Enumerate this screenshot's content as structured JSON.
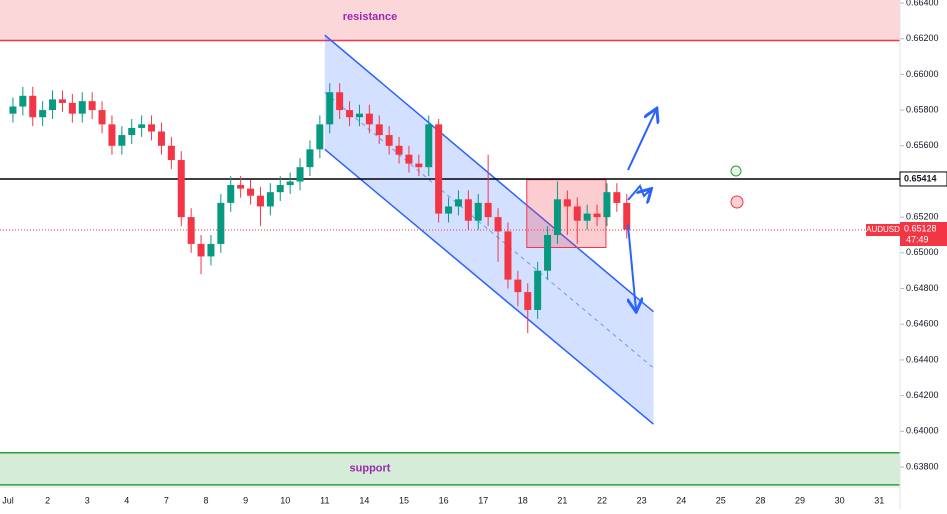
{
  "chart_data": {
    "type": "candlestick",
    "symbol": "AUDUSD",
    "last_price": {
      "value": 0.65128,
      "label": "0.65128"
    },
    "countdown": "47:49",
    "categories": [
      "Jul",
      "2",
      "3",
      "4",
      "7",
      "8",
      "9",
      "10",
      "11",
      "14",
      "15",
      "16",
      "17",
      "18",
      "21",
      "22",
      "23",
      "24",
      "25",
      "28",
      "29",
      "30",
      "31"
    ],
    "up_color": "#089981",
    "down_color": "#f23645",
    "candles": [
      [
        0.6578,
        0.6587,
        0.6573,
        0.6582
      ],
      [
        0.6582,
        0.6593,
        0.6577,
        0.6588
      ],
      [
        0.6588,
        0.6593,
        0.6571,
        0.6576
      ],
      [
        0.6576,
        0.6585,
        0.6571,
        0.658
      ],
      [
        0.658,
        0.6591,
        0.6575,
        0.6586
      ],
      [
        0.6586,
        0.6591,
        0.6579,
        0.6584
      ],
      [
        0.6584,
        0.6589,
        0.6573,
        0.6578
      ],
      [
        0.6578,
        0.659,
        0.6573,
        0.6585
      ],
      [
        0.6585,
        0.659,
        0.6575,
        0.658
      ],
      [
        0.658,
        0.6585,
        0.6567,
        0.6572
      ],
      [
        0.6572,
        0.6577,
        0.6555,
        0.656
      ],
      [
        0.656,
        0.6571,
        0.6555,
        0.6566
      ],
      [
        0.6566,
        0.6575,
        0.6561,
        0.657
      ],
      [
        0.657,
        0.6577,
        0.6565,
        0.6572
      ],
      [
        0.6572,
        0.6577,
        0.6563,
        0.6568
      ],
      [
        0.6568,
        0.6573,
        0.6555,
        0.656
      ],
      [
        0.656,
        0.6565,
        0.6547,
        0.6552
      ],
      [
        0.6552,
        0.6557,
        0.6515,
        0.652
      ],
      [
        0.652,
        0.6525,
        0.65,
        0.6505
      ],
      [
        0.6505,
        0.651,
        0.6488,
        0.6498
      ],
      [
        0.6498,
        0.651,
        0.6493,
        0.6505
      ],
      [
        0.6505,
        0.6533,
        0.65,
        0.6528
      ],
      [
        0.6528,
        0.6543,
        0.6523,
        0.6538
      ],
      [
        0.6538,
        0.6543,
        0.6531,
        0.6536
      ],
      [
        0.6536,
        0.6541,
        0.6527,
        0.6532
      ],
      [
        0.6532,
        0.6537,
        0.6515,
        0.6526
      ],
      [
        0.6526,
        0.6539,
        0.6521,
        0.6534
      ],
      [
        0.6534,
        0.6543,
        0.6529,
        0.6538
      ],
      [
        0.6538,
        0.6545,
        0.6533,
        0.654
      ],
      [
        0.654,
        0.6553,
        0.6535,
        0.6548
      ],
      [
        0.6548,
        0.6563,
        0.6543,
        0.6558
      ],
      [
        0.6558,
        0.6577,
        0.6553,
        0.6572
      ],
      [
        0.6572,
        0.6595,
        0.6567,
        0.659
      ],
      [
        0.659,
        0.6595,
        0.6575,
        0.658
      ],
      [
        0.658,
        0.6585,
        0.6571,
        0.6576
      ],
      [
        0.6576,
        0.6583,
        0.6571,
        0.6578
      ],
      [
        0.6578,
        0.6583,
        0.6567,
        0.6572
      ],
      [
        0.6572,
        0.6577,
        0.6561,
        0.6566
      ],
      [
        0.6566,
        0.6571,
        0.6555,
        0.656
      ],
      [
        0.656,
        0.6565,
        0.655,
        0.6555
      ],
      [
        0.6555,
        0.656,
        0.6545,
        0.655
      ],
      [
        0.655,
        0.6555,
        0.6543,
        0.6548
      ],
      [
        0.6548,
        0.6577,
        0.6543,
        0.6572
      ],
      [
        0.6572,
        0.6575,
        0.6517,
        0.6522
      ],
      [
        0.6522,
        0.6531,
        0.6517,
        0.6526
      ],
      [
        0.6526,
        0.6535,
        0.6521,
        0.653
      ],
      [
        0.653,
        0.6535,
        0.6513,
        0.6518
      ],
      [
        0.6518,
        0.6533,
        0.6513,
        0.6528
      ],
      [
        0.6528,
        0.6555,
        0.6515,
        0.652
      ],
      [
        0.652,
        0.6525,
        0.6495,
        0.6512
      ],
      [
        0.6512,
        0.6517,
        0.648,
        0.6485
      ],
      [
        0.6485,
        0.649,
        0.647,
        0.6478
      ],
      [
        0.6478,
        0.6483,
        0.6455,
        0.6468
      ],
      [
        0.6468,
        0.6495,
        0.6463,
        0.649
      ],
      [
        0.649,
        0.6515,
        0.6485,
        0.651
      ],
      [
        0.651,
        0.654,
        0.6505,
        0.653
      ],
      [
        0.653,
        0.6535,
        0.651,
        0.6526
      ],
      [
        0.6526,
        0.6531,
        0.6505,
        0.6518
      ],
      [
        0.6518,
        0.6527,
        0.6513,
        0.6522
      ],
      [
        0.6522,
        0.6527,
        0.6515,
        0.652
      ],
      [
        0.652,
        0.6539,
        0.6515,
        0.6534
      ],
      [
        0.6534,
        0.6539,
        0.6523,
        0.6528
      ],
      [
        0.6528,
        0.6533,
        0.6508,
        0.6513
      ]
    ],
    "ylim": [
      0.638,
      0.664
    ],
    "yticks": [
      {
        "value": 0.664,
        "label": "0.66400"
      },
      {
        "value": 0.662,
        "label": "0.66200"
      },
      {
        "value": 0.66,
        "label": "0.66000"
      },
      {
        "value": 0.658,
        "label": "0.65800"
      },
      {
        "value": 0.656,
        "label": "0.65600"
      },
      {
        "value": 0.654,
        "label": "0.65400"
      },
      {
        "value": 0.652,
        "label": "0.65200"
      },
      {
        "value": 0.65,
        "label": "0.65000"
      },
      {
        "value": 0.648,
        "label": "0.64800"
      },
      {
        "value": 0.646,
        "label": "0.64600"
      },
      {
        "value": 0.644,
        "label": "0.64400"
      },
      {
        "value": 0.642,
        "label": "0.64200"
      },
      {
        "value": 0.64,
        "label": "0.64000"
      },
      {
        "value": 0.638,
        "label": "0.63800"
      }
    ],
    "level": {
      "value": 0.65414,
      "label": "0.65414"
    },
    "zones": [
      {
        "label": "resistance",
        "range": [
          0.6619,
          0.6645
        ],
        "color": "#f23645"
      },
      {
        "label": "support",
        "range": [
          0.637,
          0.6388
        ],
        "color": "#2e9e3a"
      }
    ],
    "channel": {
      "x": [
        8.0,
        16.3
      ],
      "top": [
        0.6622,
        0.6467
      ],
      "bottom": [
        0.6558,
        0.6404
      ]
    },
    "box": {
      "x": [
        13.1,
        15.1
      ],
      "y": [
        0.6503,
        0.6541
      ]
    }
  }
}
